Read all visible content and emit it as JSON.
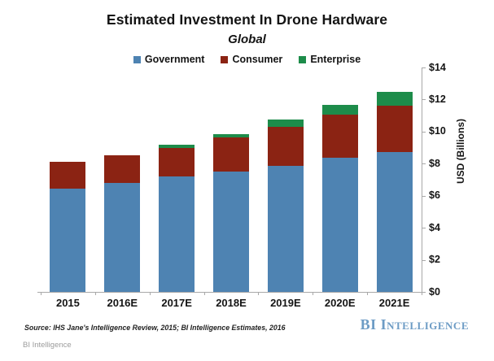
{
  "chart_data": {
    "type": "bar",
    "stacked": true,
    "title": "Estimated Investment In Drone Hardware",
    "subtitle": "Global",
    "categories": [
      "2015",
      "2016E",
      "2017E",
      "2018E",
      "2019E",
      "2020E",
      "2021E"
    ],
    "series": [
      {
        "name": "Government",
        "color": "#4e83b2",
        "values": [
          6.45,
          6.8,
          7.2,
          7.5,
          7.85,
          8.35,
          8.75
        ]
      },
      {
        "name": "Consumer",
        "color": "#8b2313",
        "values": [
          1.65,
          1.7,
          1.8,
          2.15,
          2.45,
          2.7,
          2.85
        ]
      },
      {
        "name": "Enterprise",
        "color": "#1d8c4a",
        "values": [
          0,
          0,
          0.2,
          0.2,
          0.45,
          0.6,
          0.9
        ]
      }
    ],
    "xlabel": "",
    "ylabel": "USD (Billions)",
    "ylim": [
      0,
      14
    ],
    "ytick_step": 2,
    "ytick_labels": [
      "$0",
      "$2",
      "$4",
      "$6",
      "$8",
      "$10",
      "$12",
      "$14"
    ],
    "legend_position": "top",
    "grid": false,
    "axis_color": "#a8a8a8"
  },
  "source_note": "Source: IHS Jane's Intelligence Review, 2015; BI Intelligence Estimates, 2016",
  "branding": {
    "logo_text": "BI Intelligence",
    "logo_color": "#6d9cc5",
    "footer_text": "BI Intelligence"
  }
}
